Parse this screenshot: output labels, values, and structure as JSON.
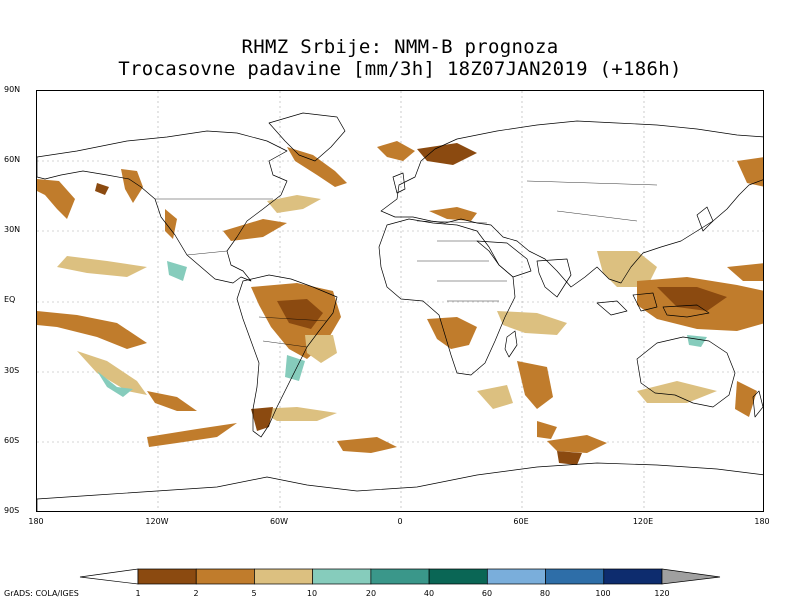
{
  "title": {
    "line1": "RHMZ Srbije: NMM-B prognoza",
    "line2": "Trocasovne padavine [mm/3h] 18Z07JAN2019 (+186h)"
  },
  "map": {
    "lat_labels": [
      "90N",
      "60N",
      "30N",
      "EQ",
      "30S",
      "60S",
      "90S"
    ],
    "lon_labels": [
      "180",
      "120W",
      "60W",
      "0",
      "60E",
      "120E",
      "180"
    ]
  },
  "colorbar": {
    "labels": [
      "1",
      "2",
      "5",
      "10",
      "20",
      "40",
      "60",
      "80",
      "100",
      "120"
    ],
    "colors": [
      "#8b4a10",
      "#c07c2c",
      "#dcc080",
      "#86ccbc",
      "#3a978a",
      "#0a6655",
      "#7aaedb",
      "#2e6ea8",
      "#0d2c6e",
      "#a0a0a0"
    ]
  },
  "credit": "GrADS: COLA/IGES"
}
